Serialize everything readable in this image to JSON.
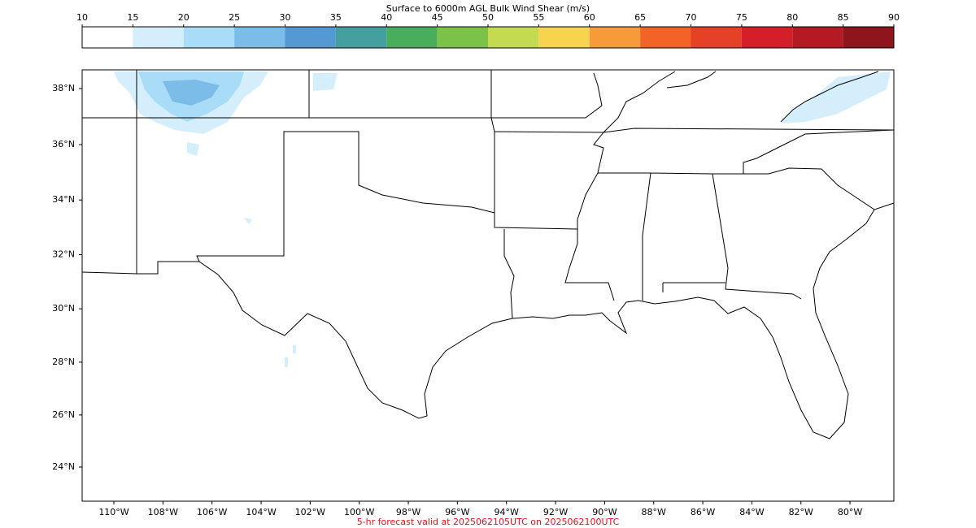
{
  "colorbar": {
    "title": "Surface to 6000m AGL Bulk Wind Shear (m/s)",
    "ticks": [
      10,
      15,
      20,
      25,
      30,
      35,
      40,
      45,
      50,
      55,
      60,
      65,
      70,
      75,
      80,
      85,
      90
    ],
    "colors": [
      "#ffffff",
      "#d4eefb",
      "#a9dcf6",
      "#7bbce8",
      "#5499d4",
      "#43a09e",
      "#48ae5c",
      "#7ac348",
      "#c4da50",
      "#f8d34f",
      "#f69a3a",
      "#f26328",
      "#e54127",
      "#d41f2b",
      "#b41a22",
      "#8d151b"
    ]
  },
  "map": {
    "lat_ticks": [
      {
        "value": 38,
        "label": "38°N"
      },
      {
        "value": 36,
        "label": "36°N"
      },
      {
        "value": 34,
        "label": "34°N"
      },
      {
        "value": 32,
        "label": "32°N"
      },
      {
        "value": 30,
        "label": "30°N"
      },
      {
        "value": 28,
        "label": "28°N"
      },
      {
        "value": 26,
        "label": "26°N"
      },
      {
        "value": 24,
        "label": "24°N"
      }
    ],
    "lon_ticks": [
      {
        "value": -110,
        "label": "110°W"
      },
      {
        "value": -108,
        "label": "108°W"
      },
      {
        "value": -106,
        "label": "106°W"
      },
      {
        "value": -104,
        "label": "104°W"
      },
      {
        "value": -102,
        "label": "102°W"
      },
      {
        "value": -100,
        "label": "100°W"
      },
      {
        "value": -98,
        "label": "98°W"
      },
      {
        "value": -96,
        "label": "96°W"
      },
      {
        "value": -94,
        "label": "94°W"
      },
      {
        "value": -92,
        "label": "92°W"
      },
      {
        "value": -90,
        "label": "90°W"
      },
      {
        "value": -88,
        "label": "88°W"
      },
      {
        "value": -86,
        "label": "86°W"
      },
      {
        "value": -84,
        "label": "84°W"
      },
      {
        "value": -82,
        "label": "82°W"
      },
      {
        "value": -80,
        "label": "80°W"
      }
    ]
  },
  "footer": "5-hr forecast valid at 2025062105UTC on 2025062100UTC"
}
